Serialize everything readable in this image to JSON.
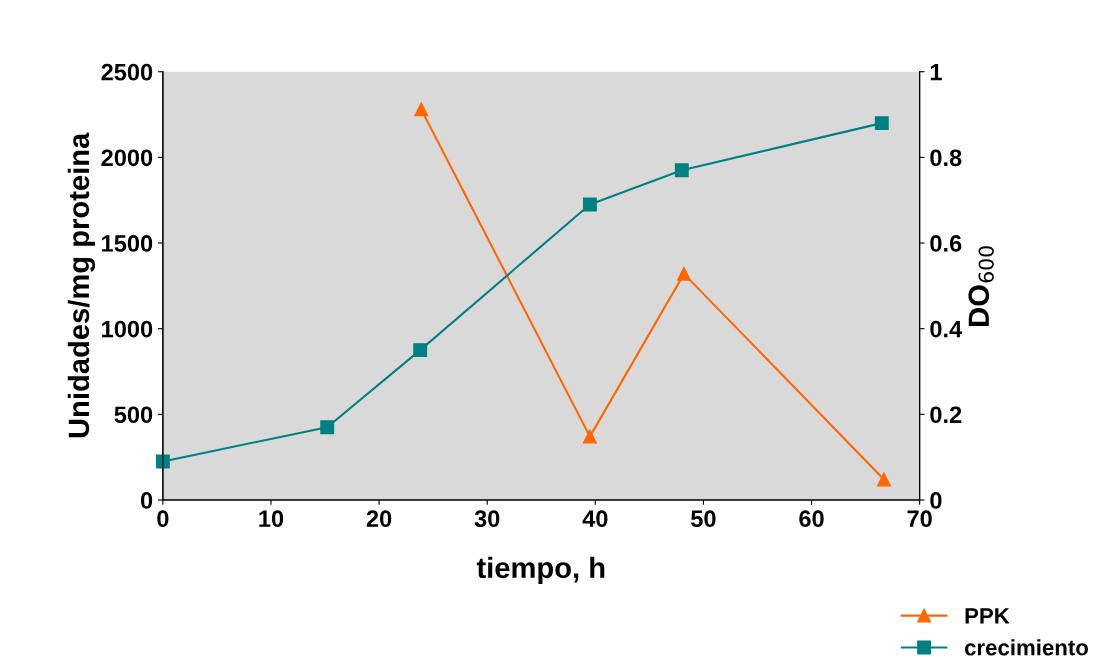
{
  "chart_data": {
    "type": "line",
    "xlabel": "tiempo, h",
    "ylabel": "Unidades/mg proteina",
    "y2label": "DO$_{600}$",
    "xlim": [
      0,
      70
    ],
    "xticks": [
      0,
      10,
      20,
      30,
      40,
      50,
      60,
      70
    ],
    "ylim": [
      0,
      2500
    ],
    "yticks": [
      0,
      500,
      1000,
      1500,
      2000,
      2500
    ],
    "y2lim": [
      0,
      1
    ],
    "y2ticks": [
      0,
      0.2,
      0.4,
      0.6,
      0.8,
      1
    ],
    "grid": false,
    "legend": "bottom right",
    "series": [
      {
        "name": "PPK",
        "color": "#ff6600",
        "marker": "triangle",
        "x": [
          23.9,
          39.5,
          48.2,
          66.7
        ],
        "values": [
          2280,
          370,
          1320,
          120
        ]
      },
      {
        "name": "crecimiento",
        "color": "#008080",
        "marker": "square",
        "axis": "y2",
        "x": [
          0,
          15.2,
          23.8,
          39.5,
          48.0,
          66.5
        ],
        "values": [
          0.09,
          0.17,
          0.35,
          0.69,
          0.77,
          0.88
        ]
      }
    ]
  }
}
